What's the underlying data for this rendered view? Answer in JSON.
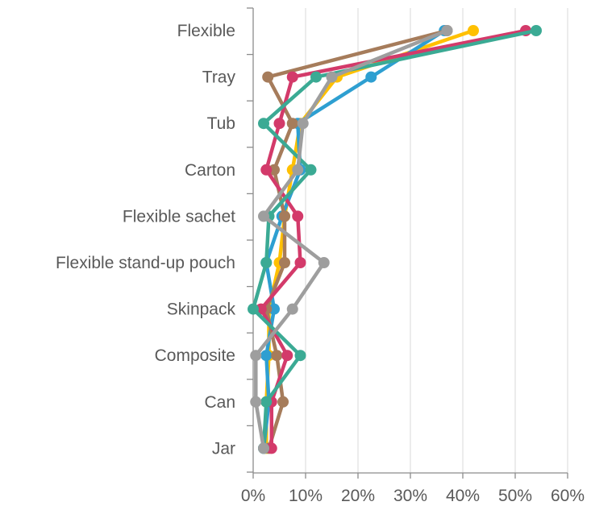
{
  "chart_data": {
    "type": "line",
    "orientation": "horizontal-categories",
    "title": "",
    "xlabel": "",
    "ylabel": "",
    "categories": [
      "Flexible",
      "Tray",
      "Tub",
      "Carton",
      "Flexible sachet",
      "Flexible stand-up pouch",
      "Skinpack",
      "Composite",
      "Can",
      "Jar"
    ],
    "x_ticks": [
      "0%",
      "10%",
      "20%",
      "30%",
      "40%",
      "50%",
      "60%"
    ],
    "xlim": [
      0,
      60
    ],
    "grid": "vertical",
    "legend": "none",
    "series": [
      {
        "color": "#FFC000",
        "values": [
          42,
          16,
          9,
          7.5,
          6,
          5,
          3,
          3,
          2.5,
          2.5
        ]
      },
      {
        "color": "#2E9FD1",
        "values": [
          36.5,
          22.5,
          8.5,
          9,
          5.5,
          2.5,
          4,
          2.5,
          3,
          2
        ]
      },
      {
        "color": "#A67C5B",
        "values": [
          37,
          2.8,
          7.5,
          4,
          6,
          6,
          2.5,
          4.5,
          5.7,
          3
        ]
      },
      {
        "color": "#D33A6A",
        "values": [
          52,
          7.5,
          5,
          2.5,
          8.5,
          9,
          1.5,
          6.5,
          3.5,
          3.5
        ]
      },
      {
        "color": "#3BAA94",
        "values": [
          54,
          12,
          2,
          11,
          3,
          2.5,
          0,
          9,
          2.5,
          2
        ]
      },
      {
        "color": "#9E9E9E",
        "values": [
          37,
          15,
          9.5,
          8.5,
          2,
          13.5,
          7.5,
          0.5,
          0.5,
          2
        ]
      }
    ]
  }
}
